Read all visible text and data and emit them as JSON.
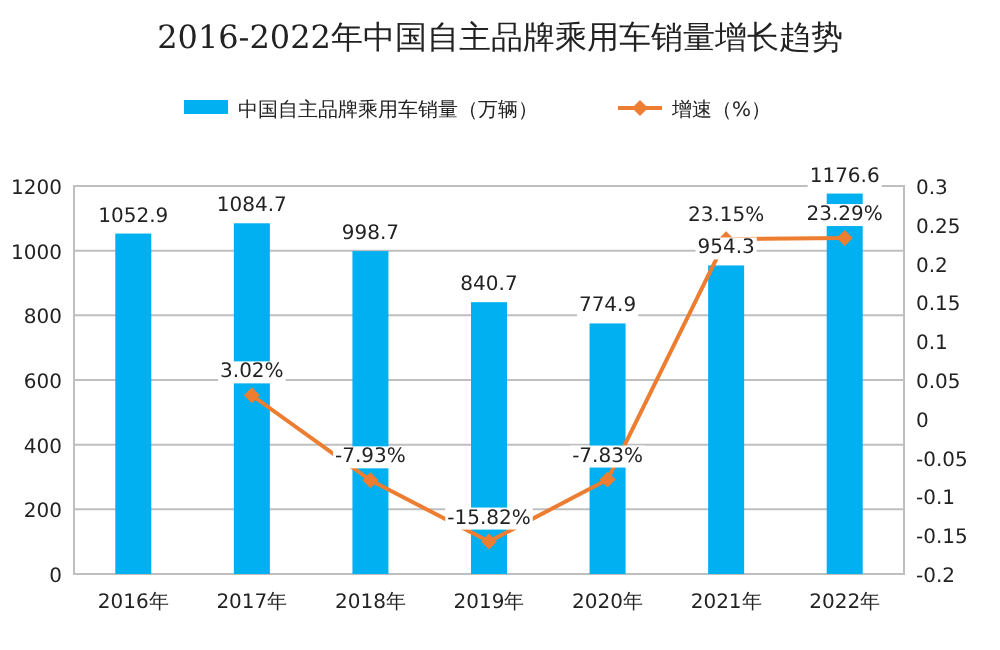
{
  "chart_data": {
    "type": "bar",
    "title": "2016-2022年中国自主品牌乘用车销量增长趋势",
    "categories": [
      "2016年",
      "2017年",
      "2018年",
      "2019年",
      "2020年",
      "2021年",
      "2022年"
    ],
    "series": [
      {
        "name": "中国自主品牌乘用车销量（万辆）",
        "color": "#00b0f0",
        "values": [
          1052.9,
          1084.7,
          998.7,
          840.7,
          774.9,
          954.3,
          1176.6
        ],
        "value_labels": [
          "1052.9",
          "1084.7",
          "998.7",
          "840.7",
          "774.9",
          "954.3",
          "1176.6"
        ]
      },
      {
        "name": "增速（%）",
        "type": "line",
        "axis": "y2",
        "color": "#ed7d31",
        "marker": "diamond",
        "values": [
          null,
          0.0302,
          -0.0793,
          -0.1582,
          -0.0783,
          0.2315,
          0.2329
        ],
        "value_labels": [
          null,
          "3.02%",
          "-7.93%",
          "-15.82%",
          "-7.83%",
          "23.15%",
          "23.29%"
        ]
      }
    ],
    "ylim": [
      0,
      1200
    ],
    "yticks": [
      0,
      200,
      400,
      600,
      800,
      1000,
      1200
    ],
    "y2lim": [
      -0.2,
      0.3
    ],
    "y2ticks": [
      -0.2,
      -0.15,
      -0.1,
      -0.05,
      0,
      0.05,
      0.1,
      0.15,
      0.2,
      0.25,
      0.3
    ],
    "grid": "y",
    "legend": "top"
  }
}
